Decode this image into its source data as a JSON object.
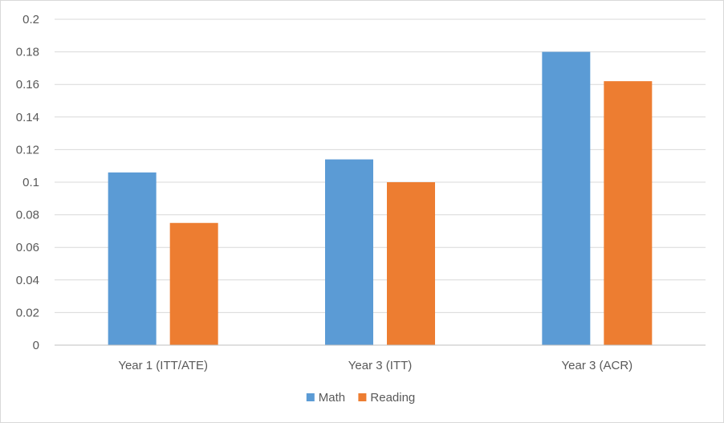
{
  "chart_data": {
    "type": "bar",
    "categories": [
      "Year 1 (ITT/ATE)",
      "Year 3 (ITT)",
      "Year 3 (ACR)"
    ],
    "series": [
      {
        "name": "Math",
        "color": "#5b9bd5",
        "values": [
          0.106,
          0.114,
          0.18
        ]
      },
      {
        "name": "Reading",
        "color": "#ed7d31",
        "values": [
          0.075,
          0.1,
          0.162
        ]
      }
    ],
    "y_ticks": [
      "0",
      "0.02",
      "0.04",
      "0.06",
      "0.08",
      "0.1",
      "0.12",
      "0.14",
      "0.16",
      "0.18",
      "0.2"
    ],
    "ylim": [
      0,
      0.2
    ],
    "grid": true,
    "legend_position": "bottom"
  }
}
